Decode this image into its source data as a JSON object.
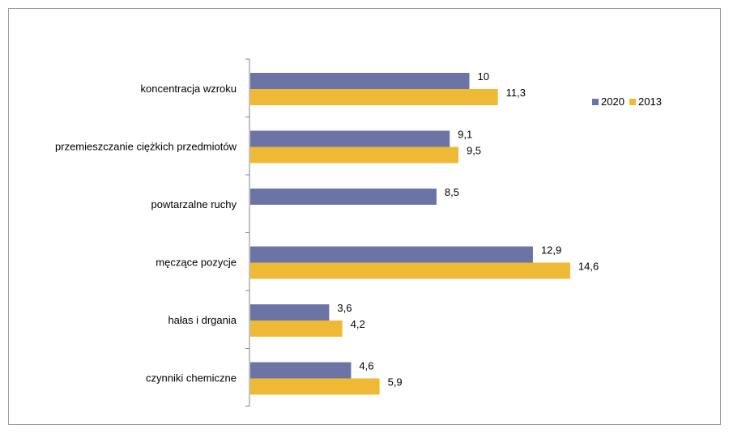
{
  "chart_data": {
    "type": "bar",
    "orientation": "horizontal",
    "categories": [
      "koncentracja wzroku",
      "przemieszczanie ciężkich przedmiotów",
      "powtarzalne ruchy",
      "męczące pozycje",
      "hałas i drgania",
      "czynniki chemiczne"
    ],
    "series": [
      {
        "name": "2020",
        "color": "#6b74a4",
        "values": [
          10,
          9.1,
          8.5,
          12.9,
          3.6,
          4.6
        ],
        "labels": [
          "10",
          "9,1",
          "8,5",
          "12,9",
          "3,6",
          "4,6"
        ]
      },
      {
        "name": "2013",
        "color": "#eeb935",
        "values": [
          11.3,
          9.5,
          null,
          14.6,
          4.2,
          5.9
        ],
        "labels": [
          "11,3",
          "9,5",
          null,
          "14,6",
          "4,2",
          "5,9"
        ]
      }
    ],
    "xlim": [
      0,
      16
    ],
    "grid": false,
    "legend_position": "right"
  }
}
